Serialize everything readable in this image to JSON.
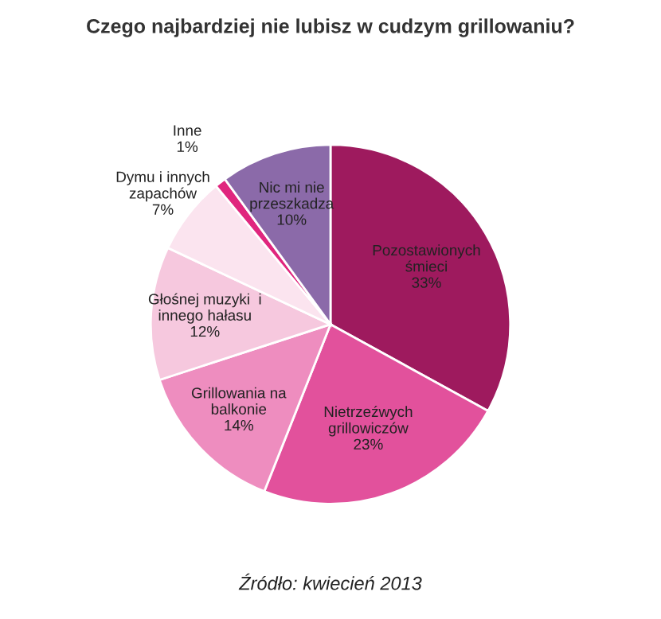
{
  "chart_data": {
    "type": "pie",
    "title": "Czego najbardziej nie lubisz w cudzym grillowaniu?",
    "categories": [
      "Pozostawionych\nśmieci",
      "Nietrzeźwych\ngrillowiczów",
      "Grillowania na\nbalkonie",
      "Głośnej muzyki  i\ninnego hałasu",
      "Dymu i innych\nzapachów",
      "Inne",
      "Nic mi nie\nprzeszkadza"
    ],
    "values": [
      33,
      23,
      14,
      12,
      7,
      1,
      10
    ],
    "value_labels": [
      "33%",
      "23%",
      "14%",
      "12%",
      "7%",
      "1%",
      "10%"
    ],
    "colors": [
      "#9e1a5e",
      "#e2519c",
      "#ee8dbf",
      "#f6c8de",
      "#fbe4ef",
      "#e0267e",
      "#8b6aa9"
    ],
    "annotations": [
      "Źródło: kwiecień 2013"
    ]
  }
}
